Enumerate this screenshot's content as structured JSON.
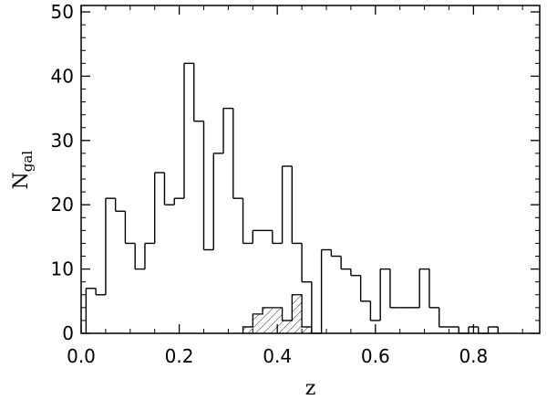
{
  "chart_data": {
    "type": "bar",
    "histogram": true,
    "xlabel": "z",
    "ylabel": {
      "main": "N",
      "sub": "gal"
    },
    "xlim": [
      0.0,
      0.935
    ],
    "ylim": [
      0,
      51
    ],
    "bin_width": 0.02,
    "x_start": 0.01,
    "xticks": [
      {
        "value": 0.0,
        "label": "0.0"
      },
      {
        "value": 0.2,
        "label": "0.2"
      },
      {
        "value": 0.4,
        "label": "0.4"
      },
      {
        "value": 0.6,
        "label": "0.6"
      },
      {
        "value": 0.8,
        "label": "0.8"
      }
    ],
    "yticks": [
      {
        "value": 0,
        "label": "0"
      },
      {
        "value": 10,
        "label": "10"
      },
      {
        "value": 20,
        "label": "20"
      },
      {
        "value": 30,
        "label": "30"
      },
      {
        "value": 40,
        "label": "40"
      },
      {
        "value": 50,
        "label": "50"
      }
    ],
    "grid": false,
    "series": [
      {
        "style": "outline",
        "values": [
          7,
          6,
          21,
          19,
          14,
          10,
          14,
          25,
          20,
          21,
          42,
          33,
          13,
          28,
          35,
          21,
          14,
          16,
          16,
          14,
          26,
          14,
          8,
          0,
          13,
          12,
          10,
          9,
          5,
          2,
          10,
          4,
          4,
          4,
          10,
          4,
          1,
          1,
          0,
          1,
          0,
          1
        ]
      },
      {
        "style": "hatched",
        "x_start": 0.33,
        "values": [
          1,
          3,
          4,
          4,
          2,
          6,
          1
        ]
      }
    ]
  }
}
